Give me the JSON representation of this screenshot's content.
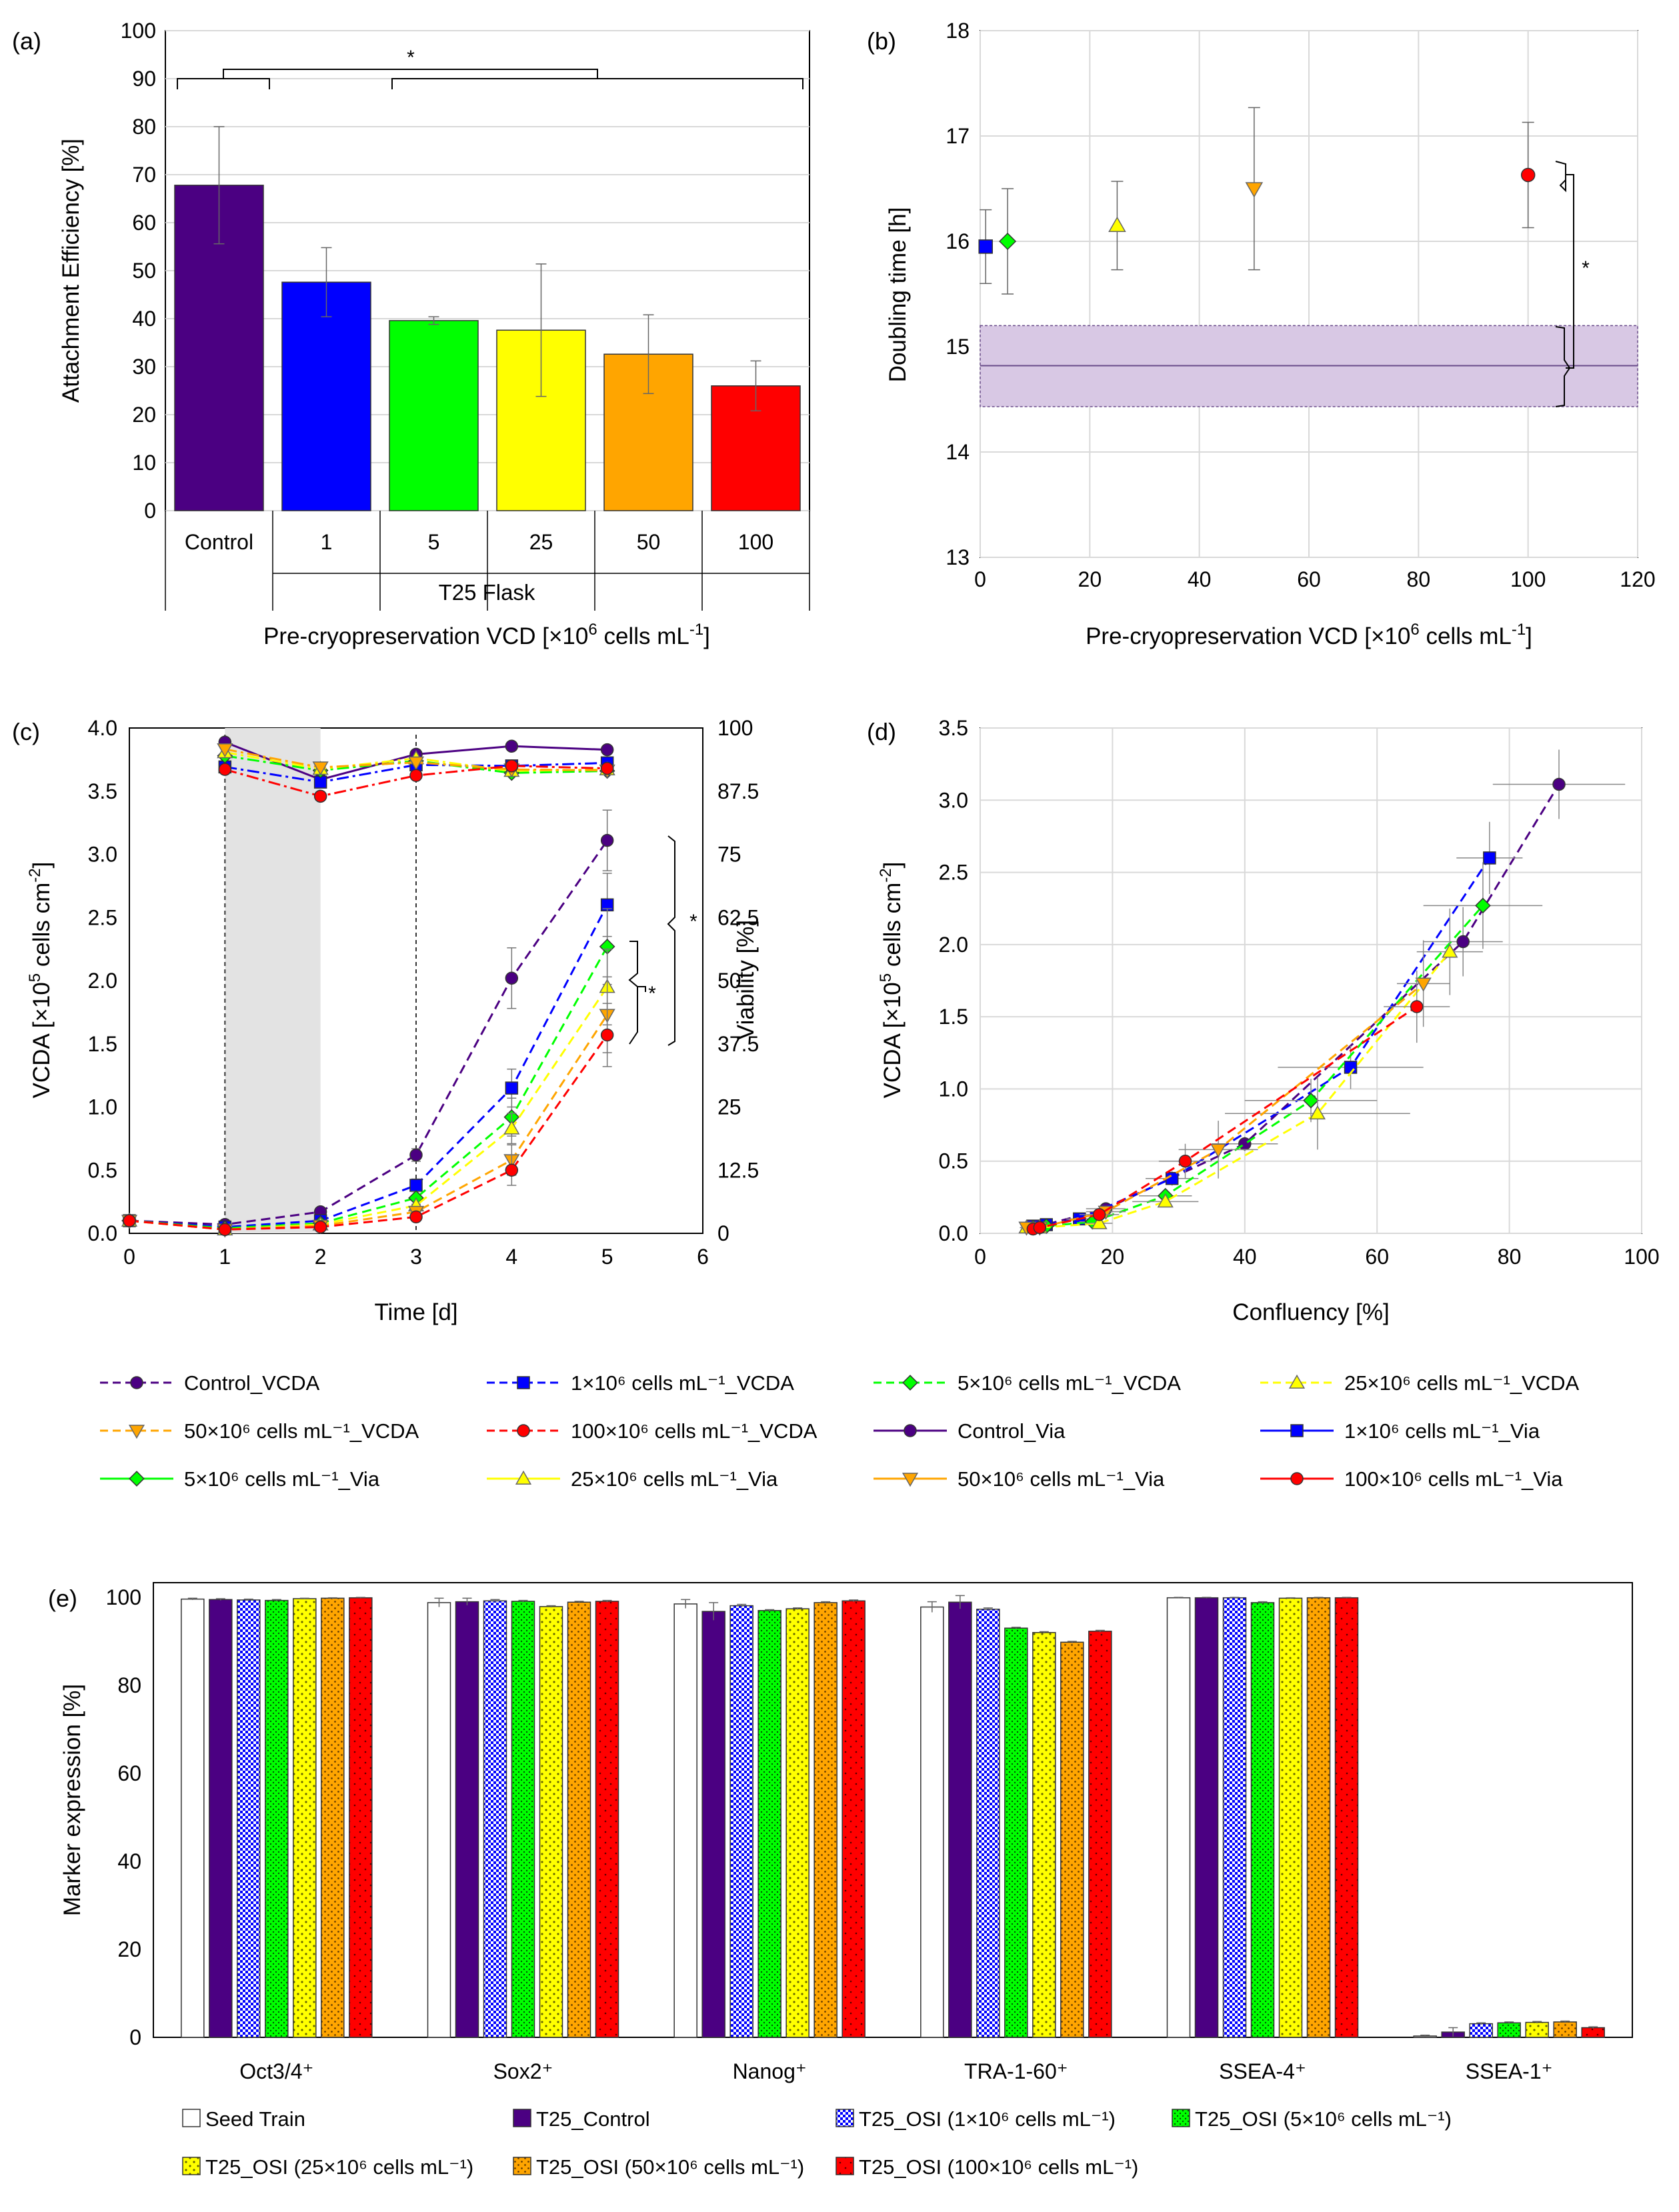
{
  "chart_data": [
    {
      "panel": "(a)",
      "type": "bar",
      "ylabel": "Attachment Efficiency [%]",
      "ylim": [
        0,
        100
      ],
      "yticks": [
        0,
        10,
        20,
        30,
        40,
        50,
        60,
        70,
        80,
        90,
        100
      ],
      "categories": [
        "Control",
        "1",
        "5",
        "25",
        "50",
        "100"
      ],
      "group_label": "T25 Flask",
      "xlabel_main": "Pre-cryopreservation VCD [×10",
      "xlabel_sup": "6",
      "xlabel_mid": " cells mL",
      "xlabel_sup2": "-1",
      "xlabel_end": "]",
      "values": [
        67.8,
        47.6,
        39.6,
        37.6,
        32.6,
        26.0
      ],
      "errors": [
        12.2,
        7.2,
        0.8,
        13.8,
        8.2,
        5.2
      ],
      "colors": [
        "#4b0082",
        "#0000ff",
        "#00ff00",
        "#ffff00",
        "#ffa500",
        "#ff0000"
      ],
      "significance": "*"
    },
    {
      "panel": "(b)",
      "type": "scatter",
      "ylabel": "Doubling time [h]",
      "xlabel_main": "Pre-cryopreservation VCD [×10",
      "xlabel_sup": "6",
      "xlabel_mid": " cells mL",
      "xlabel_sup2": "-1",
      "xlabel_end": "]",
      "xlim": [
        0,
        120
      ],
      "ylim": [
        13,
        18
      ],
      "xticks": [
        0,
        20,
        40,
        60,
        80,
        100,
        120
      ],
      "yticks": [
        13,
        14,
        15,
        16,
        17,
        18
      ],
      "points": [
        {
          "x": 1,
          "y": 15.95,
          "err": 0.35,
          "color": "#0000ff",
          "marker": "square"
        },
        {
          "x": 5,
          "y": 16.0,
          "err": 0.5,
          "color": "#00ff00",
          "marker": "diamond"
        },
        {
          "x": 25,
          "y": 16.15,
          "err": 0.42,
          "color": "#ffff00",
          "marker": "triangle"
        },
        {
          "x": 50,
          "y": 16.5,
          "err": 0.77,
          "color": "#ffa500",
          "marker": "triangle-down"
        },
        {
          "x": 100,
          "y": 16.63,
          "err": 0.5,
          "color": "#ff0000",
          "marker": "circle"
        }
      ],
      "control_band": {
        "mean": 14.82,
        "lower": 14.43,
        "upper": 15.2
      },
      "significance": "*"
    },
    {
      "panel": "(c)",
      "type": "line",
      "xlabel": "Time [d]",
      "ylabel_left_main": "VCDA [×10",
      "ylabel_left_sup": "5",
      "ylabel_left_mid": " cells cm",
      "ylabel_left_sup2": "-2",
      "ylabel_left_end": "]",
      "ylabel_right": "Viability [%]",
      "xlim": [
        0,
        6
      ],
      "ylim_left": [
        0,
        4
      ],
      "ylim_right": [
        0,
        100
      ],
      "xticks": [
        0,
        1,
        2,
        3,
        4,
        5,
        6
      ],
      "yticks_left": [
        "0.0",
        "0.5",
        "1.0",
        "1.5",
        "2.0",
        "2.5",
        "3.0",
        "3.5",
        "4.0"
      ],
      "yticks_right": [
        "0",
        "12.5",
        "25",
        "37.5",
        "50",
        "62.5",
        "75",
        "87.5",
        "100"
      ],
      "shaded_days": [
        1,
        2
      ],
      "dashed_days": [
        1,
        3
      ],
      "x": [
        0,
        1,
        2,
        3,
        4,
        5
      ],
      "series": [
        {
          "name": "Control_VCDA",
          "values": [
            0.1,
            0.07,
            0.17,
            0.62,
            2.02,
            3.11
          ],
          "err": [
            0.02,
            0.02,
            0.03,
            0.05,
            0.24,
            0.24
          ],
          "color": "#4b0082",
          "marker": "circle",
          "style": "dash"
        },
        {
          "name": "1×10⁶ cells mL⁻¹_VCDA",
          "values": [
            0.1,
            0.05,
            0.1,
            0.38,
            1.15,
            2.6
          ],
          "err": [
            0.02,
            0.02,
            0.02,
            0.05,
            0.15,
            0.25
          ],
          "color": "#0000ff",
          "marker": "square",
          "style": "dash"
        },
        {
          "name": "5×10⁶ cells mL⁻¹_VCDA",
          "values": [
            0.1,
            0.04,
            0.08,
            0.28,
            0.92,
            2.27
          ],
          "err": [
            0.02,
            0.02,
            0.02,
            0.05,
            0.15,
            0.3
          ],
          "color": "#00ff00",
          "marker": "diamond",
          "style": "dash"
        },
        {
          "name": "25×10⁶ cells mL⁻¹_VCDA",
          "values": [
            0.1,
            0.03,
            0.07,
            0.22,
            0.83,
            1.95
          ],
          "err": [
            0.02,
            0.02,
            0.02,
            0.04,
            0.12,
            0.3
          ],
          "color": "#ffff00",
          "marker": "triangle",
          "style": "dash"
        },
        {
          "name": "50×10⁶ cells mL⁻¹_VCDA",
          "values": [
            0.1,
            0.03,
            0.06,
            0.17,
            0.58,
            1.73
          ],
          "err": [
            0.02,
            0.02,
            0.02,
            0.04,
            0.12,
            0.3
          ],
          "color": "#ffa500",
          "marker": "triangle-down",
          "style": "dash"
        },
        {
          "name": "100×10⁶ cells mL⁻¹_VCDA",
          "values": [
            0.1,
            0.03,
            0.05,
            0.13,
            0.5,
            1.57
          ],
          "err": [
            0.02,
            0.02,
            0.02,
            0.03,
            0.12,
            0.25
          ],
          "color": "#ff0000",
          "marker": "circle",
          "style": "dash"
        },
        {
          "name": "Control_Via",
          "days": [
            1,
            2,
            3,
            4,
            5
          ],
          "viability": [
            97.2,
            89.8,
            94.8,
            96.4,
            95.7
          ],
          "color": "#4b0082",
          "marker": "circle",
          "style": "solid"
        },
        {
          "name": "1×10⁶ cells mL⁻¹_Via",
          "days": [
            1,
            2,
            3,
            4,
            5
          ],
          "viability": [
            92.3,
            89.3,
            92.7,
            92.5,
            93.1
          ],
          "color": "#0000ff",
          "marker": "square",
          "style": "solid"
        },
        {
          "name": "5×10⁶ cells mL⁻¹_Via",
          "days": [
            1,
            2,
            3,
            4,
            5
          ],
          "viability": [
            94.5,
            91.6,
            93.5,
            91.1,
            91.5
          ],
          "color": "#00ff00",
          "marker": "diamond",
          "style": "solid"
        },
        {
          "name": "25×10⁶ cells mL⁻¹_Via",
          "days": [
            1,
            2,
            3,
            4,
            5
          ],
          "viability": [
            95.2,
            91.9,
            94.0,
            91.5,
            91.8
          ],
          "color": "#ffff00",
          "marker": "triangle",
          "style": "solid"
        },
        {
          "name": "50×10⁶ cells mL⁻¹_Via",
          "days": [
            1,
            2,
            3,
            4,
            5
          ],
          "viability": [
            95.8,
            92.2,
            93.2,
            91.8,
            91.6
          ],
          "color": "#ffa500",
          "marker": "triangle-down",
          "style": "solid"
        },
        {
          "name": "100×10⁶ cells mL⁻¹_Via",
          "days": [
            1,
            2,
            3,
            4,
            5
          ],
          "viability": [
            91.8,
            86.5,
            90.6,
            92.5,
            92.0
          ],
          "color": "#ff0000",
          "marker": "circle",
          "style": "solid"
        }
      ],
      "significance": [
        "*",
        "*"
      ]
    },
    {
      "panel": "(d)",
      "type": "scatter",
      "xlabel": "Confluency [%]",
      "ylabel_main": "VCDA [×10",
      "ylabel_sup": "5",
      "ylabel_mid": " cells cm",
      "ylabel_sup2": "-2",
      "ylabel_end": "]",
      "xlim": [
        0,
        100
      ],
      "ylim": [
        0,
        3.5
      ],
      "xticks": [
        0,
        20,
        40,
        60,
        80,
        100
      ],
      "yticks": [
        "0.0",
        "0.5",
        "1.0",
        "1.5",
        "2.0",
        "2.5",
        "3.0",
        "3.5"
      ],
      "series": [
        {
          "name": "Control",
          "color": "#4b0082",
          "marker": "circle",
          "points": [
            [
              8,
              0.04
            ],
            [
              9,
              0.05
            ],
            [
              19,
              0.17
            ],
            [
              40,
              0.62
            ],
            [
              73,
              2.02
            ],
            [
              87.5,
              3.11
            ]
          ],
          "xerr": [
            1,
            1,
            3,
            5,
            6,
            10
          ],
          "yerr": [
            0.02,
            0.02,
            0.03,
            0.05,
            0.24,
            0.24
          ]
        },
        {
          "name": "1×10⁶ cells mL⁻¹",
          "color": "#0000ff",
          "marker": "square",
          "points": [
            [
              8,
              0.05
            ],
            [
              10,
              0.06
            ],
            [
              15,
              0.1
            ],
            [
              29,
              0.38
            ],
            [
              56,
              1.15
            ],
            [
              77,
              2.6
            ]
          ],
          "xerr": [
            1,
            1,
            2,
            4,
            11,
            5
          ],
          "yerr": [
            0.02,
            0.02,
            0.02,
            0.05,
            0.15,
            0.25
          ]
        },
        {
          "name": "5×10⁶ cells mL⁻¹",
          "color": "#00ff00",
          "marker": "diamond",
          "points": [
            [
              8,
              0.04
            ],
            [
              10,
              0.05
            ],
            [
              17,
              0.08
            ],
            [
              28,
              0.26
            ],
            [
              50,
              0.92
            ],
            [
              76,
              2.27
            ]
          ],
          "xerr": [
            1,
            1,
            2,
            4,
            10,
            9
          ],
          "yerr": [
            0.02,
            0.02,
            0.02,
            0.05,
            0.15,
            0.3
          ]
        },
        {
          "name": "25×10⁶ cells mL⁻¹",
          "color": "#ffff00",
          "marker": "triangle",
          "points": [
            [
              7,
              0.04
            ],
            [
              9,
              0.04
            ],
            [
              18,
              0.07
            ],
            [
              28,
              0.22
            ],
            [
              51,
              0.83
            ],
            [
              71,
              1.95
            ]
          ],
          "xerr": [
            1,
            1,
            2,
            5,
            14,
            5
          ],
          "yerr": [
            0.02,
            0.02,
            0.02,
            0.04,
            0.25,
            0.3
          ]
        },
        {
          "name": "50×10⁶ cells mL⁻¹",
          "color": "#ffa500",
          "marker": "triangle-down",
          "points": [
            [
              7,
              0.04
            ],
            [
              9,
              0.04
            ],
            [
              19,
              0.15
            ],
            [
              36,
              0.58
            ],
            [
              67,
              1.73
            ]
          ],
          "xerr": [
            1,
            1,
            3,
            6,
            4
          ],
          "yerr": [
            0.02,
            0.02,
            0.03,
            0.2,
            0.3
          ]
        },
        {
          "name": "100×10⁶ cells mL⁻¹",
          "color": "#ff0000",
          "marker": "circle",
          "points": [
            [
              8,
              0.03
            ],
            [
              9,
              0.04
            ],
            [
              18,
              0.13
            ],
            [
              31,
              0.5
            ],
            [
              66,
              1.57
            ]
          ],
          "xerr": [
            1,
            1,
            3,
            4,
            5
          ],
          "yerr": [
            0.02,
            0.02,
            0.02,
            0.12,
            0.25
          ]
        }
      ]
    },
    {
      "panel": "(e)",
      "type": "bar",
      "ylabel": "Marker expression [%]",
      "ylim": [
        0,
        100
      ],
      "yticks": [
        0,
        20,
        40,
        60,
        80,
        100
      ],
      "categories": [
        "Oct3/4⁺",
        "Sox2⁺",
        "Nanog⁺",
        "TRA-1-60⁺",
        "SSEA-4⁺",
        "SSEA-1⁺"
      ],
      "series": [
        {
          "name": "Seed Train",
          "color": "#ffffff",
          "pattern": "none",
          "values": [
            99.6,
            98.8,
            98.5,
            97.8,
            99.9,
            0.3
          ],
          "err": [
            0.2,
            1.0,
            1.0,
            1.2,
            0.1,
            0.2
          ]
        },
        {
          "name": "T25_Control",
          "color": "#4b0082",
          "pattern": "none",
          "values": [
            99.5,
            99.0,
            96.8,
            98.9,
            99.9,
            1.2
          ],
          "err": [
            0.2,
            0.8,
            2.0,
            1.5,
            0.1,
            1.0
          ]
        },
        {
          "name": "T25_OSI (1×10⁶ cells mL⁻¹)",
          "color": "#0000ff",
          "pattern": "checker",
          "values": [
            99.4,
            99.2,
            98.1,
            97.3,
            99.9,
            3.1
          ],
          "err": [
            0.2,
            0.3,
            0.3,
            0.3,
            0.1,
            0.2
          ]
        },
        {
          "name": "T25_OSI (5×10⁶ cells mL⁻¹)",
          "color": "#00ff00",
          "pattern": "dots",
          "values": [
            99.3,
            99.1,
            97.0,
            93.0,
            98.8,
            3.3
          ],
          "err": [
            0.2,
            0.2,
            0.2,
            0.2,
            0.2,
            0.2
          ]
        },
        {
          "name": "T25_OSI (25×10⁶ cells mL⁻¹)",
          "color": "#ffff00",
          "pattern": "dots",
          "values": [
            99.7,
            97.9,
            97.4,
            92.0,
            99.8,
            3.4
          ],
          "err": [
            0.1,
            0.2,
            0.2,
            0.2,
            0.1,
            0.2
          ]
        },
        {
          "name": "T25_OSI (50×10⁶ cells mL⁻¹)",
          "color": "#ffa500",
          "pattern": "dots",
          "values": [
            99.8,
            98.9,
            98.8,
            89.8,
            99.9,
            3.5
          ],
          "err": [
            0.1,
            0.2,
            0.2,
            0.2,
            0.1,
            0.2
          ]
        },
        {
          "name": "T25_OSI (100×10⁶ cells mL⁻¹)",
          "color": "#ff0000",
          "pattern": "dots",
          "values": [
            99.9,
            99.1,
            99.2,
            92.3,
            99.9,
            2.2
          ],
          "err": [
            0.1,
            0.2,
            0.2,
            0.2,
            0.1,
            0.2
          ]
        }
      ]
    }
  ]
}
